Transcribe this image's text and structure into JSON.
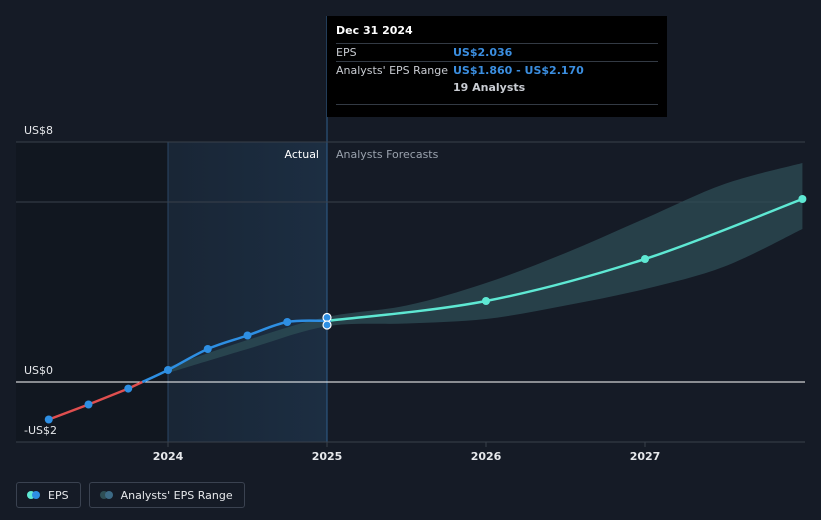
{
  "chart_data": {
    "type": "line",
    "y_tick_labels": [
      {
        "value": 8,
        "label": "US$8"
      },
      {
        "value": 0,
        "label": "US$0"
      },
      {
        "value": -2,
        "label": "-US$2"
      }
    ],
    "ylim": [
      -2,
      8
    ],
    "x_tick_labels": [
      {
        "value": 2024,
        "label": "2024"
      },
      {
        "value": 2025,
        "label": "2025"
      },
      {
        "value": 2026,
        "label": "2026"
      },
      {
        "value": 2027,
        "label": "2027"
      }
    ],
    "xlim": [
      2023.1,
      2027.99
    ],
    "region_labels": {
      "actual": "Actual",
      "forecast": "Analysts Forecasts"
    },
    "highlight_range": [
      2024,
      2025
    ],
    "series": [
      {
        "name": "EPS",
        "kind": "actual",
        "x": [
          2023.25,
          2023.5,
          2023.75,
          2024.0,
          2024.25,
          2024.5,
          2024.75,
          2025.0
        ],
        "y": [
          -1.25,
          -0.75,
          -0.22,
          0.4,
          1.1,
          1.55,
          2.0,
          2.036
        ],
        "extra_points": [
          {
            "x": 2025.0,
            "y": 2.15
          },
          {
            "x": 2025.0,
            "y": 1.9
          }
        ],
        "negative_color": "#e04f4f",
        "positive_color": "#2e8fe3"
      },
      {
        "name": "EPS",
        "kind": "forecast",
        "x": [
          2025.0,
          2026.0,
          2027.0,
          2027.99
        ],
        "y": [
          2.036,
          2.7,
          4.1,
          6.1
        ],
        "color": "#5ee8d3"
      }
    ],
    "range_band": {
      "name": "Analysts' EPS Range",
      "x": [
        2024.0,
        2024.5,
        2025.0,
        2025.5,
        2026.0,
        2026.5,
        2027.0,
        2027.5,
        2027.99
      ],
      "low": [
        0.3,
        1.1,
        1.86,
        1.95,
        2.1,
        2.55,
        3.1,
        3.85,
        5.1
      ],
      "high": [
        0.5,
        1.4,
        2.17,
        2.55,
        3.3,
        4.3,
        5.45,
        6.6,
        7.3
      ]
    },
    "tooltip": {
      "date": "Dec 31 2024",
      "eps_label": "EPS",
      "eps_value": "US$2.036",
      "range_label": "Analysts' EPS Range",
      "range_value": "US$1.860 - US$2.170",
      "analysts": "19 Analysts"
    },
    "legend": [
      "EPS",
      "Analysts' EPS Range"
    ],
    "colors": {
      "background": "#151b26",
      "actual_shade": "#1c2e42",
      "band": "#2e4e55",
      "grid": "#39404b",
      "zero_line": "#ffffff",
      "axis_text": "#e6e8eb",
      "region_text_actual": "#ffffff",
      "region_text_forecast": "#9aa2ad",
      "legend_eps_dot1": "#5ee8d3",
      "legend_eps_dot2": "#2e8fe3",
      "legend_range_dot1": "#2e4e55",
      "legend_range_dot2": "#3c6a85"
    }
  }
}
